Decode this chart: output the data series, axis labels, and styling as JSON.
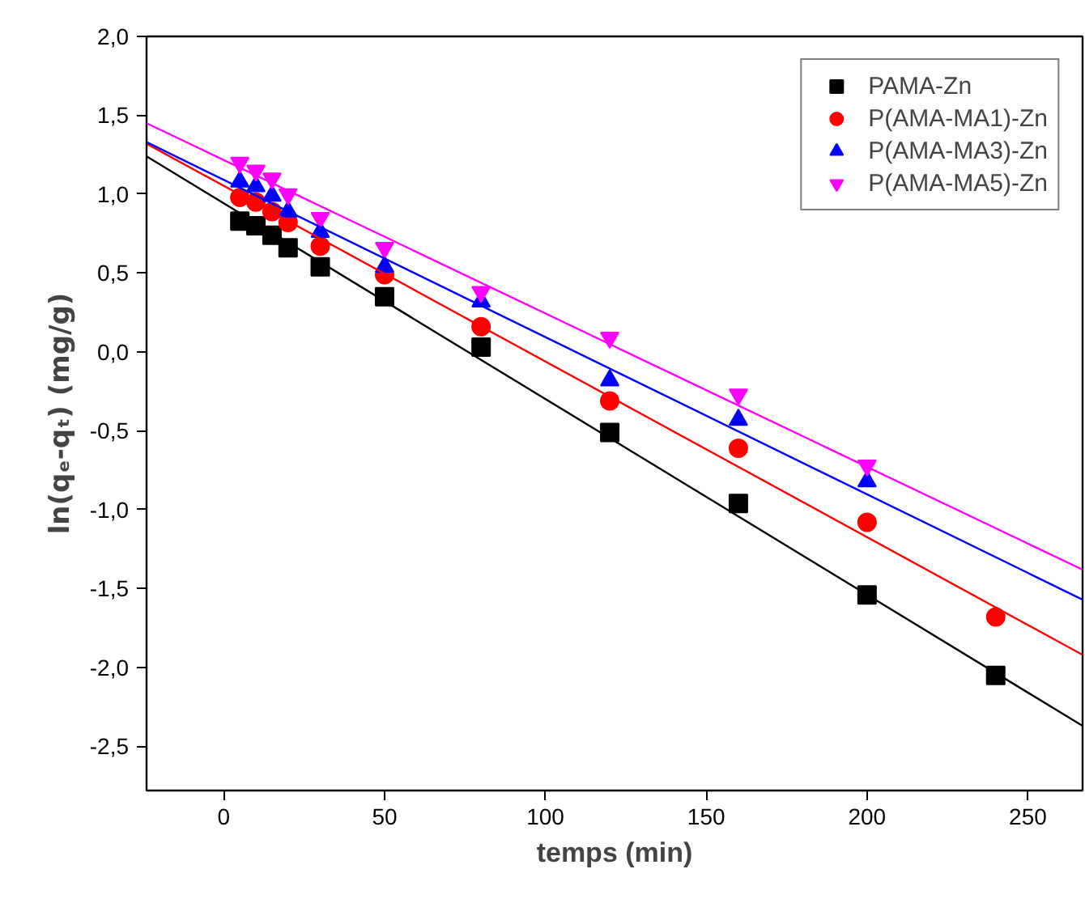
{
  "chart_data": {
    "type": "scatter",
    "xlabel": "temps (min)",
    "ylabel": "ln(qₑ-qₜ) (mg/g)",
    "xlim": [
      -24,
      267
    ],
    "ylim": [
      -2.78,
      2.0
    ],
    "xticks": [
      0,
      50,
      100,
      150,
      200,
      250
    ],
    "yticks": [
      {
        "value": 2.0,
        "label": "2,0"
      },
      {
        "value": 1.5,
        "label": "1,5"
      },
      {
        "value": 1.0,
        "label": "1,0"
      },
      {
        "value": 0.5,
        "label": "0,5"
      },
      {
        "value": 0.0,
        "label": "0,0"
      },
      {
        "value": -0.5,
        "label": "-0,5"
      },
      {
        "value": -1.0,
        "label": "-1,0"
      },
      {
        "value": -1.5,
        "label": "-1,5"
      },
      {
        "value": -2.0,
        "label": "-2,0"
      },
      {
        "value": -2.5,
        "label": "-2,5"
      }
    ],
    "grid": false,
    "legend": "top right",
    "series": [
      {
        "name": "PAMA-Zn",
        "color": "#000000",
        "marker": "square",
        "x": [
          5,
          10,
          15,
          20,
          30,
          50,
          80,
          120,
          160,
          200,
          240
        ],
        "values": [
          0.83,
          0.8,
          0.74,
          0.66,
          0.54,
          0.35,
          0.03,
          -0.51,
          -0.96,
          -1.54,
          -2.05
        ]
      },
      {
        "name": "P(AMA-MA1)-Zn",
        "color": "#ff0000",
        "marker": "circle",
        "x": [
          5,
          10,
          15,
          20,
          30,
          50,
          80,
          120,
          160,
          200,
          240
        ],
        "values": [
          0.98,
          0.95,
          0.89,
          0.82,
          0.67,
          0.49,
          0.16,
          -0.31,
          -0.61,
          -1.08,
          -1.68
        ]
      },
      {
        "name": "P(AMA-MA3)-Zn",
        "color": "#0000ff",
        "marker": "triangle",
        "x": [
          5,
          10,
          15,
          20,
          30,
          50,
          80,
          120,
          160,
          200
        ],
        "values": [
          1.08,
          1.05,
          0.99,
          0.89,
          0.76,
          0.54,
          0.32,
          -0.18,
          -0.43,
          -0.82
        ]
      },
      {
        "name": "P(AMA-MA5)-Zn",
        "color": "#ff00ff",
        "marker": "triangle",
        "x": [
          5,
          10,
          15,
          20,
          30,
          50,
          80,
          120,
          160,
          200
        ],
        "values": [
          1.2,
          1.15,
          1.1,
          1.0,
          0.85,
          0.66,
          0.38,
          0.09,
          -0.27,
          -0.72
        ]
      },
      {
        "type": "line",
        "color": "#000000",
        "x": [
          -24,
          267
        ],
        "values": [
          1.24,
          -2.37
        ]
      },
      {
        "type": "line",
        "color": "#ff0000",
        "x": [
          -24,
          267
        ],
        "values": [
          1.32,
          -1.92
        ]
      },
      {
        "type": "line",
        "color": "#0000ff",
        "x": [
          -24,
          267
        ],
        "values": [
          1.33,
          -1.57
        ]
      },
      {
        "type": "line",
        "color": "#ff00ff",
        "x": [
          -24,
          267
        ],
        "values": [
          1.45,
          -1.38
        ]
      }
    ]
  }
}
